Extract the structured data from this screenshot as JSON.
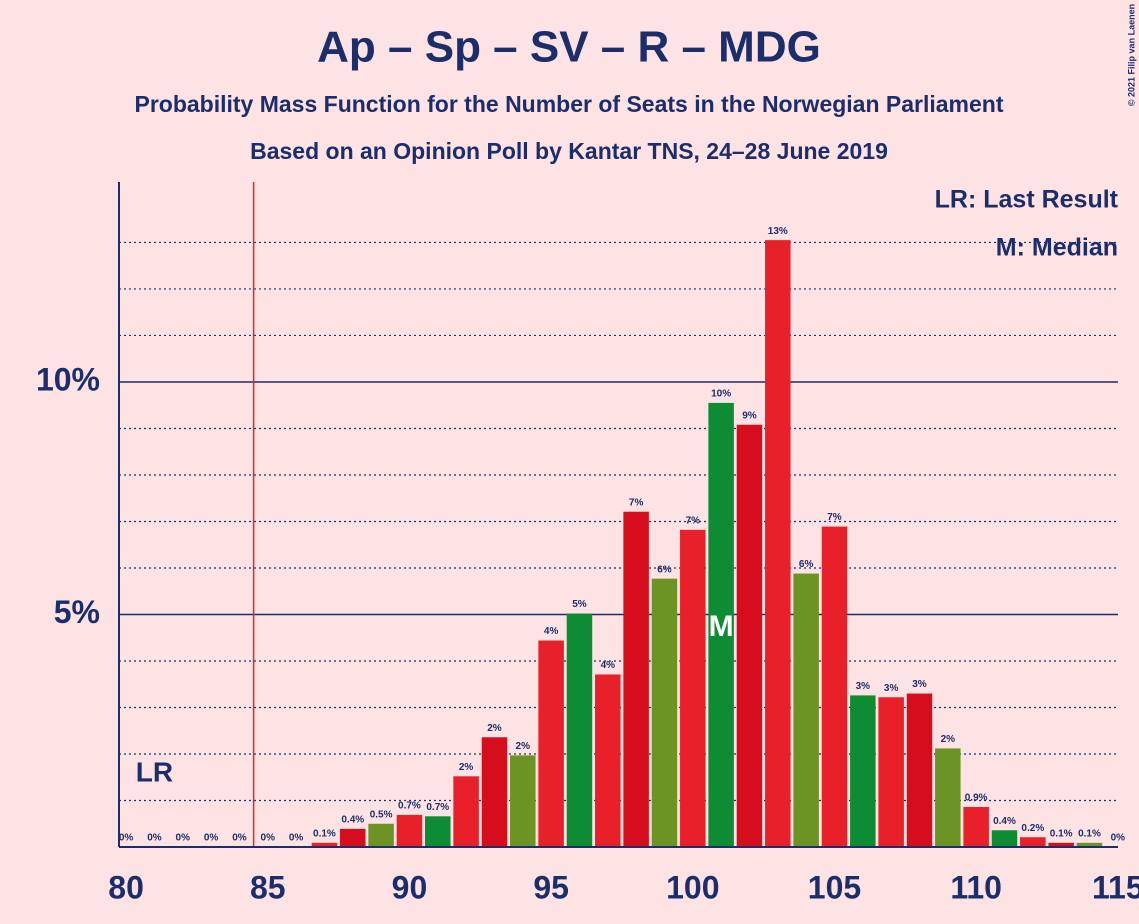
{
  "chart_data": {
    "type": "bar",
    "title": "Ap – Sp – SV – R – MDG",
    "subtitle": "Probability Mass Function for the Number of Seats in the Norwegian Parliament",
    "subtitle2": "Based on an Opinion Poll by Kantar TNS, 24–28 June 2019",
    "copyright": "© 2021 Filip van Laenen",
    "legend": [
      "LR: Last Result",
      "M: Median"
    ],
    "legend_position": "top-right",
    "x": [
      80,
      81,
      82,
      83,
      84,
      85,
      86,
      87,
      88,
      89,
      90,
      91,
      92,
      93,
      94,
      95,
      96,
      97,
      98,
      99,
      100,
      101,
      102,
      103,
      104,
      105,
      106,
      107,
      108,
      109,
      110,
      111,
      112,
      113,
      114,
      115
    ],
    "values": [
      0,
      0,
      0,
      0,
      0,
      0,
      0,
      0.09,
      0.39,
      0.5,
      0.69,
      0.66,
      1.52,
      2.36,
      1.97,
      4.44,
      5.02,
      3.71,
      7.21,
      5.77,
      6.82,
      9.55,
      9.08,
      13.05,
      5.88,
      6.89,
      3.26,
      3.22,
      3.3,
      2.12,
      0.86,
      0.36,
      0.21,
      0.09,
      0.09,
      0
    ],
    "value_labels": [
      "0%",
      "0%",
      "0%",
      "0%",
      "0%",
      "0%",
      "0%",
      "0.1%",
      "0.4%",
      "0.5%",
      "0.7%",
      "0.7%",
      "2%",
      "2%",
      "2%",
      "4%",
      "5%",
      "4%",
      "7%",
      "6%",
      "7%",
      "10%",
      "9%",
      "13%",
      "6%",
      "7%",
      "3%",
      "3%",
      "3%",
      "2%",
      "0.9%",
      "0.4%",
      "0.2%",
      "0.1%",
      "0.1%",
      "0%"
    ],
    "colors": [
      "#e8202a",
      "#0e8c34",
      "#e8202a",
      "#d60d1d",
      "#6b9424",
      "#e8202a",
      "#0e8c34",
      "#e8202a",
      "#d60d1d",
      "#6b9424",
      "#e8202a",
      "#0e8c34",
      "#e8202a",
      "#d60d1d",
      "#6b9424",
      "#e8202a",
      "#0e8c34",
      "#e8202a",
      "#d60d1d",
      "#6b9424",
      "#e8202a",
      "#0e8c34",
      "#d60d1d",
      "#e8202a",
      "#6b9424",
      "#e8202a",
      "#0e8c34",
      "#e8202a",
      "#d60d1d",
      "#6b9424",
      "#e8202a",
      "#0e8c34",
      "#e8202a",
      "#d60d1d",
      "#6b9424",
      "#e8202a"
    ],
    "xlim": [
      79.75,
      115.5
    ],
    "xticks": [
      80,
      85,
      90,
      95,
      100,
      105,
      110,
      115
    ],
    "ylim": [
      0,
      14.3
    ],
    "yticks": [
      {
        "value": 5,
        "label": "5%"
      },
      {
        "value": 10,
        "label": "10%"
      }
    ],
    "minor_yticks": [
      1,
      2,
      3,
      4,
      6,
      7,
      8,
      9,
      11,
      12,
      13
    ],
    "majority": 85,
    "last_result": 81,
    "last_result_label": "LR",
    "median": 101,
    "median_label": "M"
  }
}
